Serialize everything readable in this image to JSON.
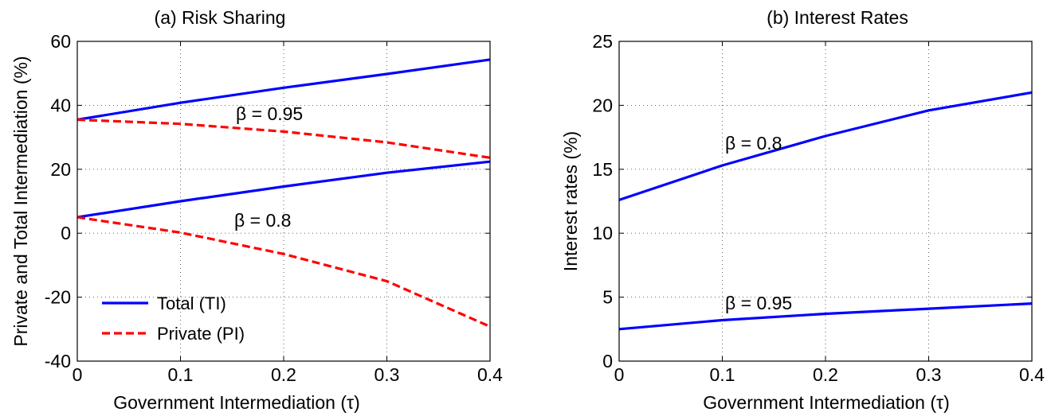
{
  "chart_data": [
    {
      "type": "line",
      "title": "(a) Risk Sharing",
      "xlabel": "Government Intermediation (τ)",
      "ylabel": "Private and Total Intermediation (%)",
      "xlim": [
        0,
        0.4
      ],
      "ylim": [
        -40,
        60
      ],
      "xticks": [
        "0",
        "0.1",
        "0.2",
        "0.3",
        "0.4"
      ],
      "yticks": [
        "-40",
        "-20",
        "0",
        "20",
        "40",
        "60"
      ],
      "grid": true,
      "legend": {
        "placement": "lower-left",
        "entries": [
          {
            "label": "Total (TI)",
            "color": "#0000ff",
            "style": "solid"
          },
          {
            "label": "Private (PI)",
            "color": "#ff0000",
            "style": "dashed"
          }
        ]
      },
      "annotations": [
        "β = 0.95",
        "β = 0.8"
      ],
      "series": [
        {
          "label": "Total (TI), β = 0.95",
          "color": "#0000ff",
          "style": "solid",
          "x": [
            0,
            0.1,
            0.2,
            0.3,
            0.4
          ],
          "values": [
            35.5,
            40.8,
            45.5,
            49.8,
            54.3
          ]
        },
        {
          "label": "Private (PI), β = 0.95",
          "color": "#ff0000",
          "style": "dashed",
          "x": [
            0,
            0.1,
            0.2,
            0.3,
            0.4
          ],
          "values": [
            35.5,
            34.2,
            31.8,
            28.4,
            23.6
          ]
        },
        {
          "label": "Total (TI), β = 0.8",
          "color": "#0000ff",
          "style": "solid",
          "x": [
            0,
            0.1,
            0.2,
            0.3,
            0.4
          ],
          "values": [
            5.0,
            10.0,
            14.6,
            18.9,
            22.4
          ]
        },
        {
          "label": "Private (PI), β = 0.8",
          "color": "#ff0000",
          "style": "dashed",
          "x": [
            0,
            0.1,
            0.2,
            0.3,
            0.4
          ],
          "values": [
            5.0,
            0.2,
            -6.5,
            -15.0,
            -29.2
          ]
        }
      ]
    },
    {
      "type": "line",
      "title": "(b) Interest Rates",
      "xlabel": "Government Intermediation (τ)",
      "ylabel": "Interest rates (%)",
      "xlim": [
        0,
        0.4
      ],
      "ylim": [
        0,
        25
      ],
      "xticks": [
        "0",
        "0.1",
        "0.2",
        "0.3",
        "0.4"
      ],
      "yticks": [
        "0",
        "5",
        "10",
        "15",
        "20",
        "25"
      ],
      "grid": true,
      "annotations": [
        "β = 0.8",
        "β = 0.95"
      ],
      "series": [
        {
          "label": "β = 0.8",
          "color": "#0000ff",
          "style": "solid",
          "x": [
            0,
            0.1,
            0.2,
            0.3,
            0.4
          ],
          "values": [
            12.6,
            15.3,
            17.6,
            19.6,
            21.0
          ]
        },
        {
          "label": "β = 0.95",
          "color": "#0000ff",
          "style": "solid",
          "x": [
            0,
            0.1,
            0.2,
            0.3,
            0.4
          ],
          "values": [
            2.5,
            3.2,
            3.7,
            4.1,
            4.5
          ]
        }
      ]
    }
  ]
}
